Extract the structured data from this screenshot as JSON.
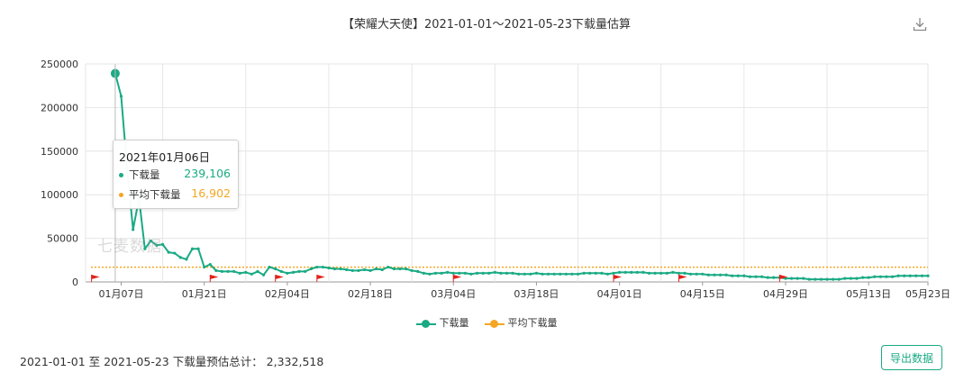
{
  "page": {
    "title": "【荣耀大天使】2021-01-01～2021-05-23下载量估算",
    "watermark": "七麦数据",
    "summary_text": "2021-01-01 至 2021-05-23 下载量预估总计：  2,332,518",
    "export_label": "导出数据"
  },
  "tooltip": {
    "date": "2021年01月06日",
    "series1_label": "下载量",
    "series1_value": "239,106",
    "series2_label": "平均下载量",
    "series2_value": "16,902"
  },
  "colors": {
    "download": "#1aaa84",
    "average": "#f5a623",
    "flag": "#e0231c",
    "grid": "#e6e6e6"
  },
  "chart_data": {
    "type": "line",
    "title": "【荣耀大天使】2021-01-01～2021-05-23下载量估算",
    "x_start": "2021-01-01",
    "x_end": "2021-05-23",
    "x_tick_labels": [
      "01月07日",
      "01月21日",
      "02月04日",
      "02月18日",
      "03月04日",
      "03月18日",
      "04月01日",
      "04月15日",
      "04月29日",
      "05月13日",
      "05月23日"
    ],
    "y_ticks": [
      0,
      50000,
      100000,
      150000,
      200000,
      250000
    ],
    "ylim": [
      0,
      250000
    ],
    "grid": true,
    "legend_position": "bottom",
    "flag_dates": [
      "2021-01-02",
      "2021-01-22",
      "2021-02-02",
      "2021-02-09",
      "2021-03-04",
      "2021-03-31",
      "2021-04-11",
      "2021-04-28"
    ],
    "series": [
      {
        "name": "下载量",
        "color": "#1aaa84",
        "x": [
          "2021-01-06",
          "2021-01-07",
          "2021-01-08",
          "2021-01-09",
          "2021-01-10",
          "2021-01-11",
          "2021-01-12",
          "2021-01-13",
          "2021-01-14",
          "2021-01-15",
          "2021-01-16",
          "2021-01-17",
          "2021-01-18",
          "2021-01-19",
          "2021-01-20",
          "2021-01-21",
          "2021-01-22",
          "2021-01-23",
          "2021-01-24",
          "2021-01-25",
          "2021-01-26",
          "2021-01-27",
          "2021-01-28",
          "2021-01-29",
          "2021-01-30",
          "2021-01-31",
          "2021-02-01",
          "2021-02-02",
          "2021-02-03",
          "2021-02-04",
          "2021-02-05",
          "2021-02-06",
          "2021-02-07",
          "2021-02-08",
          "2021-02-09",
          "2021-02-10",
          "2021-02-11",
          "2021-02-12",
          "2021-02-13",
          "2021-02-14",
          "2021-02-15",
          "2021-02-16",
          "2021-02-17",
          "2021-02-18",
          "2021-02-19",
          "2021-02-20",
          "2021-02-21",
          "2021-02-22",
          "2021-02-23",
          "2021-02-24",
          "2021-02-25",
          "2021-02-26",
          "2021-02-27",
          "2021-02-28",
          "2021-03-01",
          "2021-03-02",
          "2021-03-03",
          "2021-03-04",
          "2021-03-05",
          "2021-03-06",
          "2021-03-07",
          "2021-03-08",
          "2021-03-09",
          "2021-03-10",
          "2021-03-11",
          "2021-03-12",
          "2021-03-13",
          "2021-03-14",
          "2021-03-15",
          "2021-03-16",
          "2021-03-17",
          "2021-03-18",
          "2021-03-19",
          "2021-03-20",
          "2021-03-21",
          "2021-03-22",
          "2021-03-23",
          "2021-03-24",
          "2021-03-25",
          "2021-03-26",
          "2021-03-27",
          "2021-03-28",
          "2021-03-29",
          "2021-03-30",
          "2021-03-31",
          "2021-04-01",
          "2021-04-02",
          "2021-04-03",
          "2021-04-04",
          "2021-04-05",
          "2021-04-06",
          "2021-04-07",
          "2021-04-08",
          "2021-04-09",
          "2021-04-10",
          "2021-04-11",
          "2021-04-12",
          "2021-04-13",
          "2021-04-14",
          "2021-04-15",
          "2021-04-16",
          "2021-04-17",
          "2021-04-18",
          "2021-04-19",
          "2021-04-20",
          "2021-04-21",
          "2021-04-22",
          "2021-04-23",
          "2021-04-24",
          "2021-04-25",
          "2021-04-26",
          "2021-04-27",
          "2021-04-28",
          "2021-04-29",
          "2021-04-30",
          "2021-05-01",
          "2021-05-02",
          "2021-05-03",
          "2021-05-04",
          "2021-05-05",
          "2021-05-06",
          "2021-05-07",
          "2021-05-08",
          "2021-05-09",
          "2021-05-10",
          "2021-05-11",
          "2021-05-12",
          "2021-05-13",
          "2021-05-14",
          "2021-05-15",
          "2021-05-16",
          "2021-05-17",
          "2021-05-18",
          "2021-05-19",
          "2021-05-20",
          "2021-05-21",
          "2021-05-22",
          "2021-05-23"
        ],
        "values": [
          239106,
          213000,
          130000,
          60000,
          96000,
          38000,
          47000,
          42000,
          43000,
          34000,
          33000,
          28000,
          26000,
          38000,
          38000,
          17000,
          20000,
          13000,
          12000,
          12000,
          12000,
          10000,
          11000,
          9000,
          12000,
          8000,
          17000,
          15000,
          12000,
          10000,
          11000,
          12000,
          12000,
          15000,
          17000,
          17000,
          16000,
          15000,
          15000,
          14000,
          13000,
          13000,
          14000,
          13000,
          15000,
          14000,
          17000,
          15000,
          15000,
          15000,
          13000,
          12000,
          10000,
          9000,
          10000,
          10000,
          11000,
          10000,
          10000,
          10000,
          9000,
          10000,
          10000,
          10000,
          11000,
          10000,
          10000,
          10000,
          9000,
          9000,
          9000,
          10000,
          9000,
          9000,
          9000,
          9000,
          9000,
          9000,
          9000,
          10000,
          10000,
          10000,
          10000,
          9000,
          10000,
          11000,
          11000,
          11000,
          11000,
          11000,
          10000,
          10000,
          10000,
          10000,
          11000,
          10000,
          10000,
          9000,
          9000,
          9000,
          8000,
          8000,
          8000,
          8000,
          7000,
          7000,
          7000,
          6000,
          6000,
          6000,
          5000,
          5000,
          5000,
          4000,
          4000,
          4000,
          4000,
          3000,
          3000,
          3000,
          3000,
          3000,
          3000,
          4000,
          4000,
          4000,
          5000,
          5000,
          6000,
          6000,
          6000,
          6000,
          7000,
          7000,
          7000,
          7000,
          7000,
          7000
        ]
      },
      {
        "name": "平均下载量",
        "color": "#f5a623",
        "constant": 16902
      }
    ]
  }
}
